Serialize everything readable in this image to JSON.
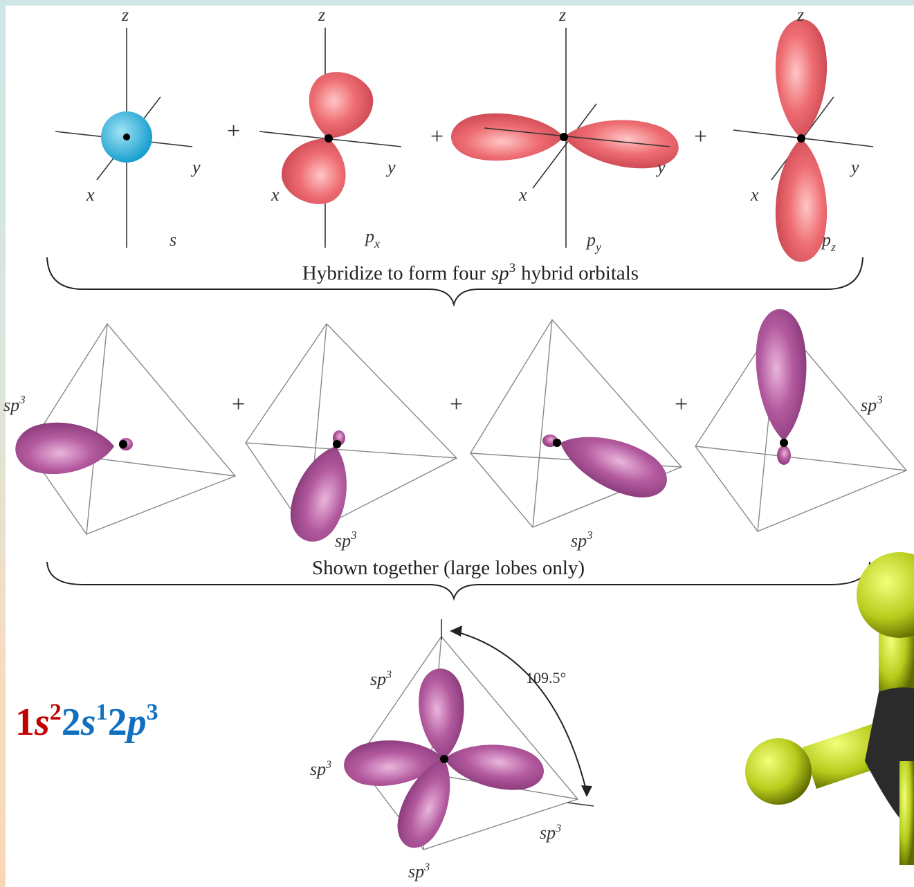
{
  "row1": {
    "panels": [
      {
        "axes": {
          "z": "z",
          "x": "x",
          "y": "y"
        },
        "label": {
          "base": "s"
        }
      },
      {
        "axes": {
          "z": "z",
          "x": "x",
          "y": "y"
        },
        "label": {
          "base": "p",
          "sub": "x"
        }
      },
      {
        "axes": {
          "z": "z",
          "x": "x",
          "y": "y"
        },
        "label": {
          "base": "p",
          "sub": "y"
        }
      },
      {
        "axes": {
          "z": "z",
          "x": "x",
          "y": "y"
        },
        "label": {
          "base": "p",
          "sub": "z"
        }
      }
    ],
    "operators": [
      "+",
      "+",
      "+"
    ]
  },
  "caption1": {
    "before": "Hybridize to form four",
    "term": {
      "base": "sp",
      "sup": "3"
    },
    "after": "hybrid orbitals"
  },
  "row2": {
    "panels": [
      {
        "label": {
          "base": "sp",
          "sup": "3"
        }
      },
      {
        "label": {
          "base": "sp",
          "sup": "3"
        }
      },
      {
        "label": {
          "base": "sp",
          "sup": "3"
        }
      },
      {
        "label": {
          "base": "sp",
          "sup": "3"
        }
      }
    ],
    "operators": [
      "+",
      "+",
      "+"
    ]
  },
  "caption2": "Shown together (large lobes only)",
  "combined": {
    "labels": [
      {
        "base": "sp",
        "sup": "3"
      },
      {
        "base": "sp",
        "sup": "3"
      },
      {
        "base": "sp",
        "sup": "3"
      },
      {
        "base": "sp",
        "sup": "3"
      }
    ],
    "angle": "109.5°"
  },
  "electron_config": [
    {
      "n": "1",
      "l": "s",
      "e": "2"
    },
    {
      "n": "2",
      "l": "s",
      "e": "1"
    },
    {
      "n": "2",
      "l": "p",
      "e": "3"
    }
  ]
}
